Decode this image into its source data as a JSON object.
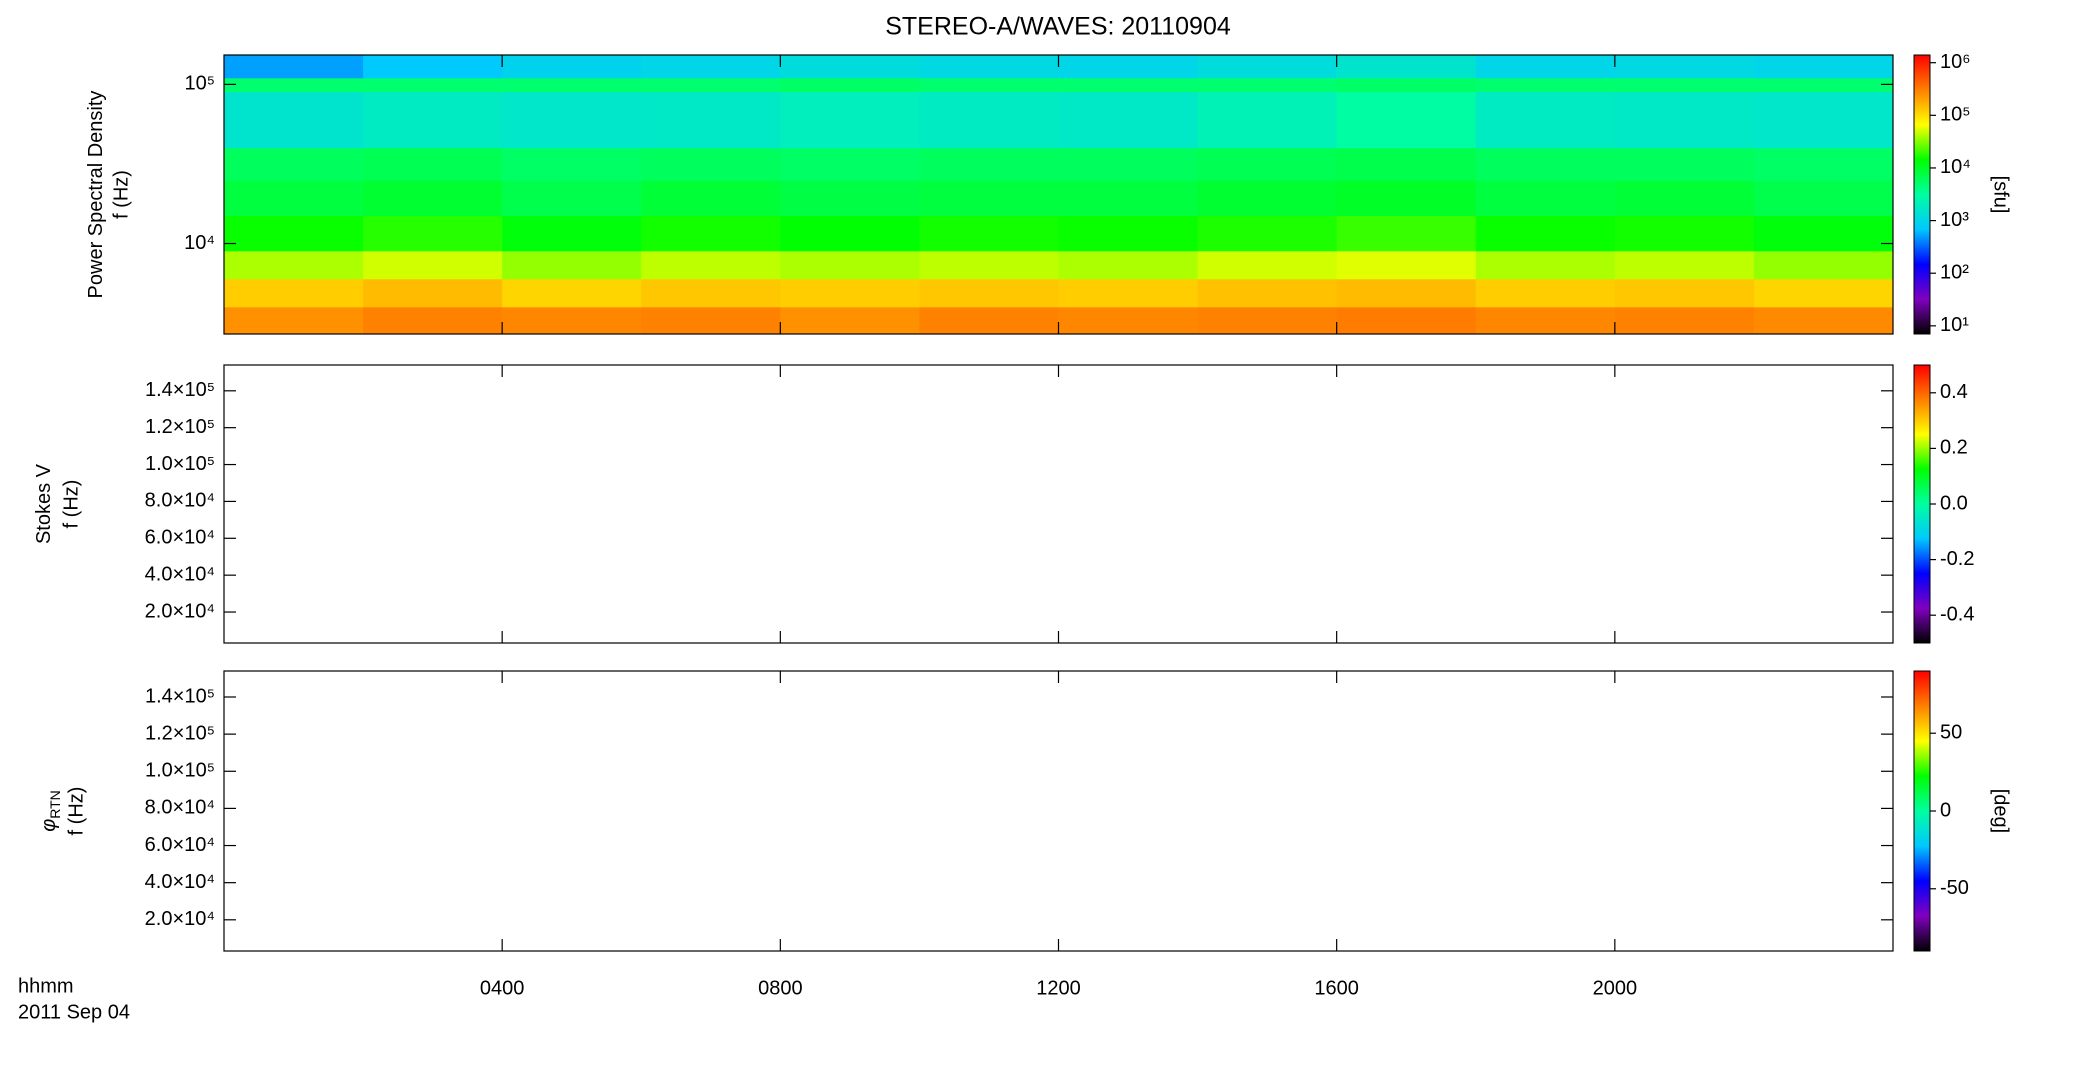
{
  "chart_data": [
    {
      "type": "heatmap",
      "title": "STEREO-A/WAVES: 20110904",
      "ylabel": "Power Spectral Density",
      "ylabel2": "f (Hz)",
      "ylog": true,
      "ylim": [
        2700,
        153000
      ],
      "yticks": [
        {
          "value": 10000,
          "label": "10⁴"
        },
        {
          "value": 100000,
          "label": "10⁵"
        }
      ],
      "xlim": [
        0,
        24
      ],
      "time_bins": [
        0,
        2,
        4,
        6,
        8,
        10,
        12,
        14,
        16,
        18,
        20,
        22,
        24
      ],
      "freq_bins": [
        2700,
        4000,
        6000,
        9000,
        15000,
        25000,
        40000,
        90000,
        110000,
        153000
      ],
      "z": [
        [
          250000,
          300000,
          280000,
          300000,
          250000,
          300000,
          280000,
          300000,
          320000,
          280000,
          300000,
          270000
        ],
        [
          120000,
          150000,
          110000,
          130000,
          120000,
          130000,
          120000,
          140000,
          150000,
          120000,
          130000,
          110000
        ],
        [
          40000,
          50000,
          35000,
          45000,
          40000,
          45000,
          40000,
          50000,
          55000,
          40000,
          45000,
          35000
        ],
        [
          15000,
          18000,
          13000,
          16000,
          14000,
          16000,
          15000,
          17000,
          20000,
          15000,
          16000,
          13000
        ],
        [
          8000,
          9000,
          7000,
          8500,
          7500,
          8000,
          8000,
          9000,
          10000,
          8000,
          8500,
          7000
        ],
        [
          6000,
          6500,
          5500,
          6000,
          5500,
          6000,
          6000,
          6500,
          7000,
          6000,
          6000,
          5500
        ],
        [
          1500,
          1800,
          1600,
          1700,
          2000,
          1800,
          1700,
          2200,
          3000,
          1800,
          1700,
          1600
        ],
        [
          5000,
          5000,
          5000,
          5000,
          5500,
          5000,
          5000,
          5000,
          5500,
          5000,
          5000,
          5000
        ],
        [
          500,
          700,
          900,
          1000,
          1200,
          1100,
          1000,
          1200,
          1500,
          1000,
          1100,
          1000
        ]
      ],
      "clog": true,
      "clim": [
        7,
        1400000
      ],
      "cticks": [
        {
          "value": 10,
          "label": "10¹"
        },
        {
          "value": 100,
          "label": "10²"
        },
        {
          "value": 1000,
          "label": "10³"
        },
        {
          "value": 10000,
          "label": "10⁴"
        },
        {
          "value": 100000,
          "label": "10⁵"
        },
        {
          "value": 1000000,
          "label": "10⁶"
        }
      ],
      "clabel": "[sfu]",
      "colormap": [
        "#000000",
        "#8000c0",
        "#0000ff",
        "#00c8ff",
        "#00ffa0",
        "#00ff00",
        "#ffff00",
        "#ff8000",
        "#ff0000"
      ]
    },
    {
      "type": "heatmap",
      "ylabel": "Stokes V",
      "ylabel2": "f (Hz)",
      "ylim": [
        3200,
        154000
      ],
      "yticks": [
        {
          "value": 20000,
          "label": "2.0×10⁴"
        },
        {
          "value": 40000,
          "label": "4.0×10⁴"
        },
        {
          "value": 60000,
          "label": "6.0×10⁴"
        },
        {
          "value": 80000,
          "label": "8.0×10⁴"
        },
        {
          "value": 100000,
          "label": "1.0×10⁵"
        },
        {
          "value": 120000,
          "label": "1.2×10⁵"
        },
        {
          "value": 140000,
          "label": "1.4×10⁵"
        }
      ],
      "xlim": [
        0,
        24
      ],
      "clim": [
        -0.5,
        0.5
      ],
      "cticks": [
        -0.4,
        -0.2,
        {
          "value": 0,
          "label": "0.0"
        },
        0.2,
        0.4
      ],
      "colormap": [
        "#000000",
        "#8000c0",
        "#0000ff",
        "#00c8ff",
        "#00ffa0",
        "#00ff00",
        "#ffff00",
        "#ff8000",
        "#ff0000"
      ]
    },
    {
      "type": "heatmap",
      "ylabel": "φ",
      "ylabel_sub": "RTN",
      "ylabel2": "f (Hz)",
      "ylim": [
        3200,
        154000
      ],
      "yticks": [
        {
          "value": 20000,
          "label": "2.0×10⁴"
        },
        {
          "value": 40000,
          "label": "4.0×10⁴"
        },
        {
          "value": 60000,
          "label": "6.0×10⁴"
        },
        {
          "value": 80000,
          "label": "8.0×10⁴"
        },
        {
          "value": 100000,
          "label": "1.0×10⁵"
        },
        {
          "value": 120000,
          "label": "1.2×10⁵"
        },
        {
          "value": 140000,
          "label": "1.4×10⁵"
        }
      ],
      "xlim": [
        0,
        24
      ],
      "xticks": [
        {
          "value": 4,
          "label": "0400"
        },
        {
          "value": 8,
          "label": "0800"
        },
        {
          "value": 12,
          "label": "1200"
        },
        {
          "value": 16,
          "label": "1600"
        },
        {
          "value": 20,
          "label": "2000"
        }
      ],
      "xlabel": "hhmm",
      "date": "2011 Sep 04",
      "clim": [
        -90,
        90
      ],
      "cticks": [
        -50,
        0,
        50
      ],
      "clabel": "[deg]",
      "colormap": [
        "#000000",
        "#8000c0",
        "#0000ff",
        "#00c8ff",
        "#00ffa0",
        "#00ff00",
        "#ffff00",
        "#ff8000",
        "#ff0000"
      ]
    }
  ]
}
